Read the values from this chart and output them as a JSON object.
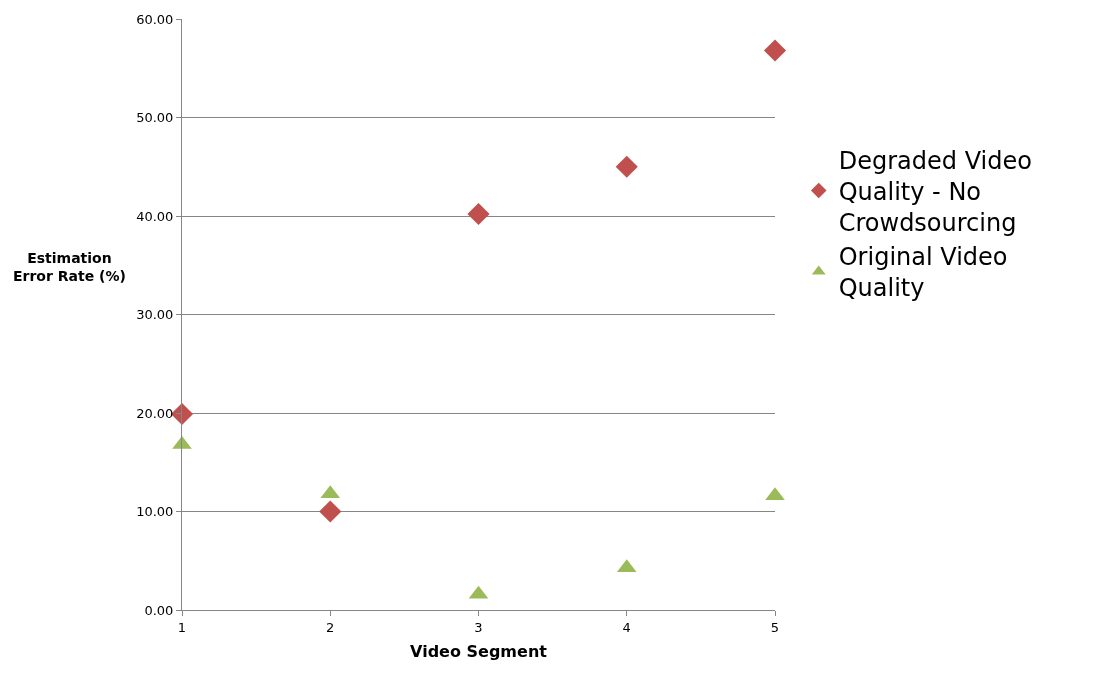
{
  "chart_data": {
    "type": "scatter",
    "xlabel": "Video Segment",
    "ylabel": "Estimation Error Rate (%)",
    "x": [
      1,
      2,
      3,
      4,
      5
    ],
    "series": [
      {
        "name": "Degraded Video Quality - No Crowdsourcing",
        "color": "#c0504d",
        "marker": "diamond",
        "values": [
          19.9,
          10.0,
          40.2,
          45.0,
          56.8
        ]
      },
      {
        "name": "Original Video Quality",
        "color": "#9bbb59",
        "marker": "triangle",
        "values": [
          16.8,
          11.8,
          1.6,
          4.3,
          11.6
        ]
      }
    ],
    "xlim": [
      1,
      5
    ],
    "xticks": [
      1,
      2,
      3,
      4,
      5
    ],
    "ylim": [
      0,
      60
    ],
    "yticks": [
      {
        "value": 0,
        "label": "0.00"
      },
      {
        "value": 10,
        "label": "10.00"
      },
      {
        "value": 20,
        "label": "20.00"
      },
      {
        "value": 30,
        "label": "30.00"
      },
      {
        "value": 40,
        "label": "40.00"
      },
      {
        "value": 50,
        "label": "50.00"
      },
      {
        "value": 60,
        "label": "60.00"
      }
    ],
    "grid": "y",
    "legend": "right"
  }
}
